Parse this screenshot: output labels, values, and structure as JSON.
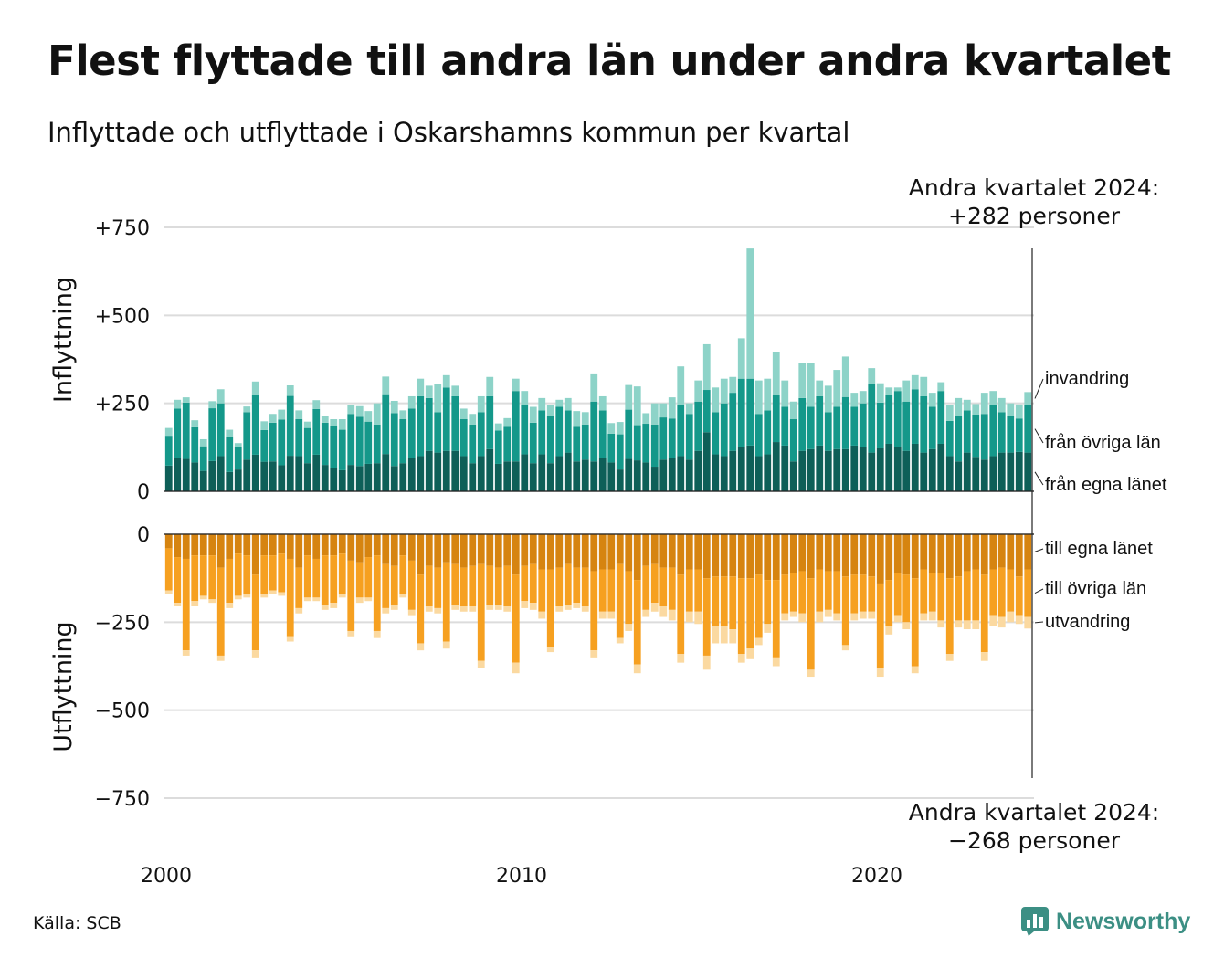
{
  "title": "Flest flyttade till andra län under andra kvartalet",
  "subtitle": "Inflyttade och utflyttade i Oskarshamns kommun per kvartal",
  "source": "Källa: SCB",
  "brand": "Newsworthy",
  "colors": {
    "in_egna": "#0e5f58",
    "in_ovriga": "#14988a",
    "in_invandring": "#8dd3c8",
    "ut_egna": "#d68410",
    "ut_ovriga": "#f6a020",
    "ut_utvandring": "#fbd9a0",
    "brand": "#3c8f84"
  },
  "chart_data": {
    "type": "bar",
    "stacked": true,
    "title": "Flest flyttade till andra län under andra kvartalet",
    "panels": {
      "top": {
        "ylabel": "Inflyttning",
        "ylim": [
          0,
          750
        ],
        "ticks": [
          "0",
          "+250",
          "+500",
          "+750"
        ]
      },
      "bottom": {
        "ylabel": "Utflyttning",
        "ylim": [
          -750,
          0
        ],
        "ticks": [
          "0",
          "−250",
          "−500",
          "−750"
        ]
      }
    },
    "x_ticks": [
      "2000",
      "2010",
      "2020"
    ],
    "grid": true,
    "annotation_top": {
      "line1": "Andra kvartalet 2024:",
      "line2": "+282 personer"
    },
    "annotation_bottom": {
      "line1": "Andra kvartalet 2024:",
      "line2": "−268 personer"
    },
    "series_inflow": [
      {
        "name": "från egna länet",
        "values": [
          73,
          95,
          92,
          82,
          58,
          86,
          100,
          55,
          62,
          90,
          104,
          84,
          85,
          74,
          101,
          100,
          80,
          104,
          75,
          65,
          60,
          75,
          72,
          78,
          80,
          106,
          72,
          80,
          95,
          100,
          115,
          110,
          115,
          115,
          100,
          80,
          100,
          120,
          78,
          85,
          85,
          105,
          80,
          105,
          80,
          100,
          110,
          85,
          90,
          85,
          95,
          82,
          62,
          92,
          88,
          82,
          70,
          90,
          95,
          100,
          90,
          115,
          168,
          105,
          100,
          115,
          125,
          130,
          100,
          105,
          140,
          130,
          85,
          115,
          120,
          130,
          115,
          120,
          120,
          130,
          125,
          110,
          122,
          135,
          125,
          115,
          135,
          110,
          120,
          135,
          100,
          85,
          110,
          98,
          90,
          100,
          110,
          110,
          112,
          110
        ]
      },
      {
        "name": "från övriga län",
        "values": [
          85,
          140,
          160,
          100,
          70,
          150,
          150,
          100,
          65,
          135,
          170,
          90,
          110,
          130,
          170,
          105,
          100,
          130,
          120,
          120,
          115,
          145,
          140,
          120,
          110,
          170,
          150,
          125,
          140,
          170,
          150,
          115,
          180,
          155,
          105,
          110,
          125,
          150,
          95,
          98,
          200,
          140,
          115,
          125,
          135,
          140,
          120,
          98,
          100,
          170,
          135,
          82,
          100,
          140,
          100,
          110,
          120,
          120,
          112,
          145,
          130,
          140,
          120,
          120,
          150,
          165,
          195,
          190,
          120,
          125,
          135,
          110,
          120,
          150,
          120,
          140,
          110,
          120,
          148,
          110,
          125,
          195,
          130,
          140,
          160,
          140,
          155,
          160,
          120,
          150,
          100,
          130,
          120,
          120,
          130,
          145,
          115,
          105,
          95,
          135
        ]
      },
      {
        "name": "invandring",
        "values": [
          22,
          25,
          15,
          20,
          20,
          20,
          40,
          20,
          10,
          16,
          38,
          25,
          25,
          28,
          30,
          25,
          18,
          25,
          20,
          20,
          30,
          25,
          30,
          30,
          60,
          50,
          35,
          25,
          35,
          50,
          35,
          80,
          35,
          30,
          30,
          30,
          45,
          55,
          20,
          25,
          35,
          40,
          45,
          35,
          30,
          20,
          35,
          45,
          35,
          80,
          40,
          30,
          35,
          70,
          110,
          30,
          60,
          40,
          60,
          110,
          30,
          60,
          130,
          70,
          70,
          45,
          115,
          370,
          95,
          90,
          120,
          75,
          50,
          100,
          125,
          45,
          75,
          105,
          115,
          40,
          35,
          45,
          55,
          20,
          10,
          60,
          40,
          55,
          40,
          25,
          45,
          50,
          30,
          30,
          60,
          40,
          40,
          35,
          40,
          37
        ]
      }
    ],
    "series_outflow": [
      {
        "name": "till egna länet",
        "values": [
          -40,
          -65,
          -70,
          -60,
          -60,
          -60,
          -95,
          -70,
          -55,
          -60,
          -115,
          -60,
          -60,
          -55,
          -70,
          -95,
          -60,
          -70,
          -60,
          -60,
          -55,
          -75,
          -80,
          -65,
          -60,
          -85,
          -90,
          -60,
          -75,
          -115,
          -90,
          -95,
          -80,
          -85,
          -95,
          -90,
          -85,
          -90,
          -95,
          -90,
          -115,
          -90,
          -85,
          -100,
          -100,
          -95,
          -85,
          -95,
          -95,
          -105,
          -100,
          -100,
          -85,
          -105,
          -130,
          -90,
          -85,
          -95,
          -95,
          -115,
          -100,
          -100,
          -125,
          -120,
          -120,
          -120,
          -125,
          -125,
          -115,
          -130,
          -130,
          -115,
          -110,
          -105,
          -125,
          -100,
          -105,
          -105,
          -120,
          -115,
          -115,
          -120,
          -140,
          -130,
          -110,
          -115,
          -125,
          -100,
          -110,
          -110,
          -125,
          -120,
          -105,
          -100,
          -115,
          -100,
          -95,
          -100,
          -120,
          -100
        ]
      },
      {
        "name": "till övriga län",
        "values": [
          -120,
          -130,
          -260,
          -130,
          -115,
          -125,
          -250,
          -125,
          -120,
          -110,
          -215,
          -110,
          -100,
          -110,
          -220,
          -115,
          -120,
          -110,
          -140,
          -135,
          -115,
          -200,
          -100,
          -115,
          -215,
          -125,
          -110,
          -110,
          -140,
          -195,
          -115,
          -115,
          -225,
          -115,
          -110,
          -115,
          -275,
          -110,
          -105,
          -115,
          -250,
          -100,
          -110,
          -120,
          -220,
          -110,
          -115,
          -100,
          -110,
          -225,
          -120,
          -120,
          -210,
          -150,
          -240,
          -125,
          -110,
          -110,
          -120,
          -225,
          -120,
          -120,
          -220,
          -140,
          -140,
          -150,
          -215,
          -200,
          -180,
          -125,
          -220,
          -110,
          -110,
          -120,
          -260,
          -120,
          -110,
          -120,
          -195,
          -110,
          -105,
          -100,
          -240,
          -130,
          -120,
          -135,
          -250,
          -125,
          -110,
          -135,
          -215,
          -125,
          -140,
          -145,
          -220,
          -130,
          -140,
          -120,
          -110,
          -135
        ]
      },
      {
        "name": "utvandring",
        "values": [
          -10,
          -10,
          -15,
          -15,
          -10,
          -10,
          -15,
          -15,
          -10,
          -10,
          -20,
          -10,
          -10,
          -10,
          -15,
          -15,
          -10,
          -10,
          -15,
          -15,
          -10,
          -15,
          -15,
          -10,
          -20,
          -15,
          -15,
          -10,
          -15,
          -20,
          -15,
          -15,
          -20,
          -15,
          -15,
          -15,
          -20,
          -15,
          -15,
          -15,
          -30,
          -20,
          -20,
          -20,
          -15,
          -15,
          -15,
          -15,
          -15,
          -20,
          -20,
          -20,
          -15,
          -20,
          -25,
          -20,
          -25,
          -30,
          -30,
          -25,
          -30,
          -35,
          -40,
          -50,
          -50,
          -40,
          -25,
          -30,
          -20,
          -25,
          -25,
          -20,
          -15,
          -25,
          -20,
          -30,
          -20,
          -20,
          -15,
          -20,
          -20,
          -20,
          -25,
          -25,
          -20,
          -20,
          -20,
          -20,
          -25,
          -20,
          -20,
          -20,
          -25,
          -25,
          -25,
          -30,
          -30,
          -30,
          -25,
          -33
        ]
      }
    ]
  }
}
